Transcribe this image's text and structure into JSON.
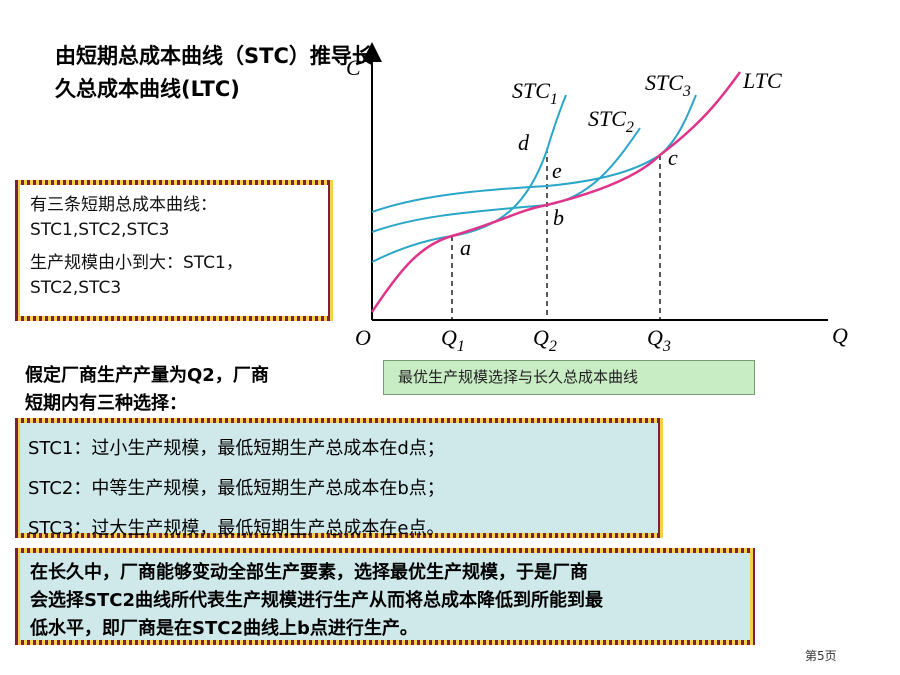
{
  "title": [
    "由短期总成本曲线（STC）推导长",
    "久总成本曲线(LTC)"
  ],
  "scale_box": [
    "有三条短期总成本曲线：",
    "STC1,STC2,STC3",
    "生产规模由小到大：STC1，",
    "STC2,STC3"
  ],
  "diagram": {
    "y_axis": "C",
    "x_axis": "Q",
    "origin": "O",
    "quantities": [
      {
        "name": "Q",
        "sub": "1"
      },
      {
        "name": "Q",
        "sub": "2"
      },
      {
        "name": "Q",
        "sub": "3"
      }
    ],
    "curves": [
      {
        "name": "STC",
        "sub": "1"
      },
      {
        "name": "STC",
        "sub": "2"
      },
      {
        "name": "STC",
        "sub": "3"
      },
      {
        "name": "LTC"
      }
    ],
    "points": [
      "d",
      "e",
      "b",
      "c",
      "a"
    ],
    "caption": "最优生产规模选择与长久总成本曲线"
  },
  "premise": [
    "假定厂商生产产量为Q2，厂商",
    "短期内有三种选择："
  ],
  "choices": [
    "STC1：过小生产规模，最低短期生产总成本在d点；",
    "STC2：中等生产规模，最低短期生产总成本在b点；",
    "STC3：过大生产规模，最低短期生产总成本在e点。"
  ],
  "conclusion": [
    "在长久中，厂商能够变动全部生产要素，选择最优生产规模，于是厂商",
    "会选择STC2曲线所代表生产规模进行生产从而将总成本降低到所能到最",
    "低水平，即厂商是在STC2曲线上b点进行生产。"
  ],
  "page_number": "第5页"
}
